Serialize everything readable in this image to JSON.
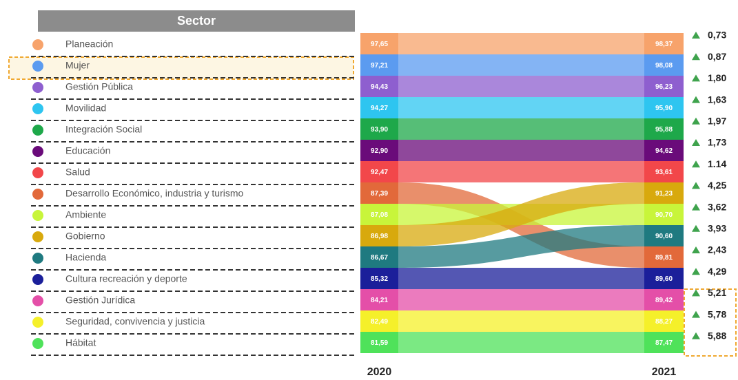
{
  "chart_data": {
    "type": "bump",
    "legend_title": "Sector",
    "categories": [
      "2020",
      "2021"
    ],
    "series": [
      {
        "name": "Planeación",
        "color": "#f7a36b",
        "values": [
          97.65,
          98.37
        ],
        "value_labels": [
          "97,65",
          "98,37"
        ]
      },
      {
        "name": "Mujer",
        "color": "#5b9bf0",
        "values": [
          97.21,
          98.08
        ],
        "value_labels": [
          "97,21",
          "98,08"
        ]
      },
      {
        "name": "Gestión Pública",
        "color": "#8e5fcf",
        "values": [
          94.43,
          96.23
        ],
        "value_labels": [
          "94,43",
          "96,23"
        ]
      },
      {
        "name": "Movilidad",
        "color": "#2ec5f0",
        "values": [
          94.27,
          95.9
        ],
        "value_labels": [
          "94,27",
          "95,90"
        ]
      },
      {
        "name": "Integración Social",
        "color": "#1ea84a",
        "values": [
          93.9,
          95.88
        ],
        "value_labels": [
          "93,90",
          "95,88"
        ]
      },
      {
        "name": "Educación",
        "color": "#6a0b7a",
        "values": [
          92.9,
          94.62
        ],
        "value_labels": [
          "92,90",
          "94,62"
        ]
      },
      {
        "name": "Salud",
        "color": "#f2474a",
        "values": [
          92.47,
          93.61
        ],
        "value_labels": [
          "92,47",
          "93,61"
        ]
      },
      {
        "name": "Desarrollo Económico, industria y turismo",
        "color": "#e2693a",
        "values": [
          87.39,
          89.81
        ],
        "value_labels": [
          "87,39",
          "89,81"
        ]
      },
      {
        "name": "Ambiente",
        "color": "#c8f53a",
        "values": [
          87.08,
          90.7
        ],
        "value_labels": [
          "87,08",
          "90,70"
        ]
      },
      {
        "name": "Gobierno",
        "color": "#d8a90d",
        "values": [
          86.98,
          91.23
        ],
        "value_labels": [
          "86,98",
          "91,23"
        ]
      },
      {
        "name": "Hacienda",
        "color": "#1f7a80",
        "values": [
          86.67,
          90.6
        ],
        "value_labels": [
          "86,67",
          "90,60"
        ]
      },
      {
        "name": "Cultura recreación y deporte",
        "color": "#1b1f9a",
        "values": [
          85.32,
          89.6
        ],
        "value_labels": [
          "85,32",
          "89,60"
        ]
      },
      {
        "name": "Gestión Jurídica",
        "color": "#e44fa8",
        "values": [
          84.21,
          89.42
        ],
        "value_labels": [
          "84,21",
          "89,42"
        ]
      },
      {
        "name": "Seguridad, convivencia y justicia",
        "color": "#f5f02a",
        "values": [
          82.49,
          88.27
        ],
        "value_labels": [
          "82,49",
          "88,27"
        ]
      },
      {
        "name": "Hábitat",
        "color": "#4fe25a",
        "values": [
          81.59,
          87.47
        ],
        "value_labels": [
          "81,59",
          "87,47"
        ]
      }
    ],
    "changes": {
      "values": [
        0.73,
        0.87,
        1.8,
        1.63,
        1.97,
        1.73,
        1.14,
        4.25,
        3.62,
        3.93,
        2.43,
        4.29,
        5.21,
        5.78,
        5.88
      ],
      "value_labels": [
        "0,73",
        "0,87",
        "1,80",
        "1,63",
        "1,97",
        "1,73",
        "1.14",
        "4,25",
        "3,62",
        "3,93",
        "2,43",
        "4,29",
        "5,21",
        "5,78",
        "5,88"
      ],
      "color": "#3fa34d"
    }
  }
}
